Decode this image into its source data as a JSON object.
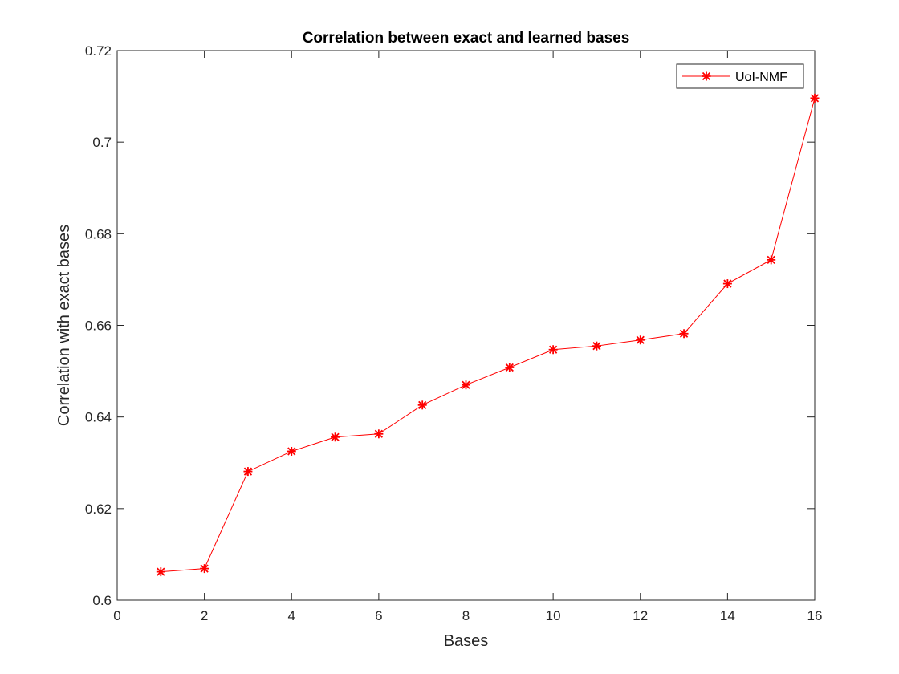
{
  "chart_data": {
    "type": "line",
    "title": "Correlation between exact and learned bases",
    "xlabel": "Bases",
    "ylabel": "Correlation with exact bases",
    "xlim": [
      0,
      16
    ],
    "ylim": [
      0.6,
      0.72
    ],
    "xticks": [
      0,
      2,
      4,
      6,
      8,
      10,
      12,
      14,
      16
    ],
    "yticks": [
      0.6,
      0.62,
      0.64,
      0.66,
      0.68,
      0.7,
      0.72
    ],
    "ytick_labels": [
      "0.6",
      "0.62",
      "0.64",
      "0.66",
      "0.68",
      "0.7",
      "0.72"
    ],
    "grid": false,
    "legend_position": "top-right",
    "series": [
      {
        "name": "UoI-NMF",
        "color": "#ff0000",
        "marker": "asterisk",
        "x": [
          1,
          2,
          3,
          4,
          5,
          6,
          7,
          8,
          9,
          10,
          11,
          12,
          13,
          14,
          15,
          16
        ],
        "y": [
          0.6062,
          0.6069,
          0.6281,
          0.6325,
          0.6356,
          0.6363,
          0.6426,
          0.647,
          0.6508,
          0.6547,
          0.6555,
          0.6568,
          0.6582,
          0.6691,
          0.6743,
          0.7096
        ]
      }
    ]
  }
}
